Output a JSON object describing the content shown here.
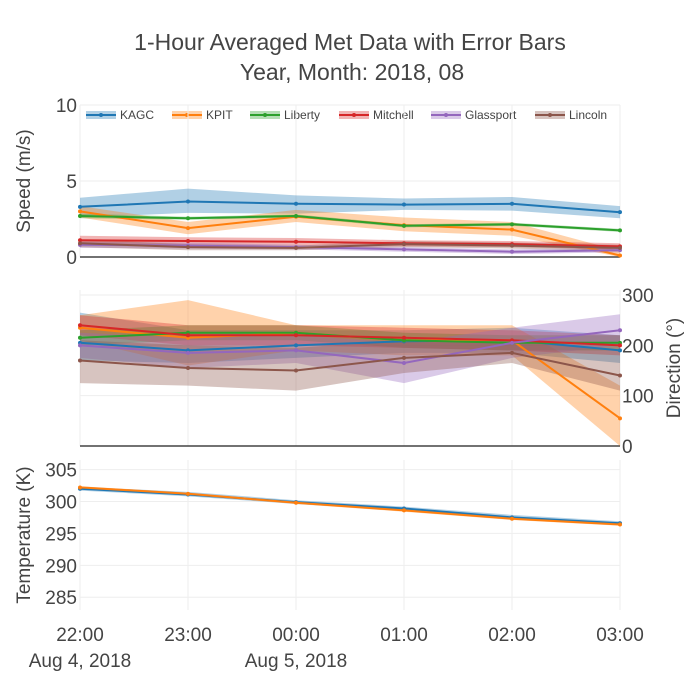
{
  "chart_data": {
    "type": "line",
    "title": "1-Hour Averaged Met Data with Error Bars",
    "subtitle": "Year, Month: 2018, 08",
    "x_ticks": [
      "22:00",
      "23:00",
      "00:00",
      "01:00",
      "02:00",
      "03:00"
    ],
    "x_dates": [
      "Aug 4, 2018",
      "Aug 5, 2018"
    ],
    "x_times": [
      "2018-08-04 22:00",
      "2018-08-04 23:00",
      "2018-08-05 00:00",
      "2018-08-05 01:00",
      "2018-08-05 02:00",
      "2018-08-05 03:00"
    ],
    "legend": {
      "placement": "top",
      "orientation": "horizontal"
    },
    "grid": true,
    "colors": {
      "KAGC": "#1f77b4",
      "KPIT": "#ff7f0e",
      "Liberty": "#2ca02c",
      "Mitchell": "#d62728",
      "Glassport": "#9467bd",
      "Lincoln": "#8c564b"
    },
    "panels": [
      {
        "id": "speed",
        "ylabel": "Speed (m/s)",
        "y_axis_side": "left",
        "ylim": [
          0,
          10
        ],
        "yticks": [
          "0",
          "5",
          "10"
        ],
        "series": [
          {
            "name": "KAGC",
            "values": [
              3.3,
              3.65,
              3.5,
              3.45,
              3.5,
              2.95
            ],
            "lower": [
              2.6,
              2.9,
              2.85,
              3.1,
              3.05,
              2.55
            ],
            "upper": [
              3.9,
              4.5,
              4.05,
              3.85,
              3.95,
              3.35
            ]
          },
          {
            "name": "KPIT",
            "values": [
              3.0,
              1.9,
              2.65,
              2.1,
              1.8,
              0.1
            ],
            "lower": [
              2.6,
              1.5,
              2.3,
              1.7,
              1.4,
              0.0
            ],
            "upper": [
              3.35,
              2.3,
              3.1,
              2.6,
              2.3,
              0.4
            ]
          },
          {
            "name": "Liberty",
            "values": [
              2.7,
              2.55,
              2.7,
              2.05,
              2.15,
              1.75
            ],
            "lower": [
              2.55,
              2.45,
              2.6,
              1.95,
              2.05,
              1.65
            ],
            "upper": [
              2.85,
              2.65,
              2.8,
              2.15,
              2.25,
              1.85
            ]
          },
          {
            "name": "Mitchell",
            "values": [
              1.1,
              1.05,
              1.0,
              0.9,
              0.85,
              0.7
            ],
            "lower": [
              0.8,
              0.8,
              0.75,
              0.7,
              0.65,
              0.5
            ],
            "upper": [
              1.4,
              1.3,
              1.25,
              1.1,
              1.05,
              0.9
            ]
          },
          {
            "name": "Glassport",
            "values": [
              0.8,
              0.75,
              0.65,
              0.5,
              0.35,
              0.45
            ],
            "lower": [
              0.6,
              0.55,
              0.5,
              0.35,
              0.2,
              0.3
            ],
            "upper": [
              1.0,
              0.95,
              0.8,
              0.65,
              0.5,
              0.6
            ]
          },
          {
            "name": "Lincoln",
            "values": [
              0.9,
              0.65,
              0.6,
              0.85,
              0.75,
              0.6
            ],
            "lower": [
              0.65,
              0.45,
              0.45,
              0.65,
              0.55,
              0.4
            ],
            "upper": [
              1.15,
              0.85,
              0.75,
              1.05,
              0.95,
              0.8
            ]
          }
        ]
      },
      {
        "id": "direction",
        "ylabel": "Direction (°)",
        "y_axis_side": "right",
        "ylim": [
          0,
          310
        ],
        "yticks": [
          "0",
          "100",
          "200",
          "300"
        ],
        "series": [
          {
            "name": "KAGC",
            "values": [
              205,
              190,
              200,
              208,
              210,
              190
            ],
            "lower": [
              170,
              165,
              175,
              185,
              185,
              165
            ],
            "upper": [
              265,
              230,
              230,
              230,
              235,
              220
            ]
          },
          {
            "name": "KPIT",
            "values": [
              235,
              215,
              225,
              210,
              210,
              55
            ],
            "lower": [
              210,
              160,
              190,
              180,
              180,
              0
            ],
            "upper": [
              260,
              290,
              240,
              240,
              240,
              120
            ]
          },
          {
            "name": "Liberty",
            "values": [
              215,
              225,
              225,
              210,
              205,
              205
            ],
            "lower": [
              200,
              210,
              210,
              195,
              190,
              190
            ],
            "upper": [
              230,
              240,
              240,
              225,
              220,
              220
            ]
          },
          {
            "name": "Mitchell",
            "values": [
              240,
              220,
              220,
              215,
              210,
              200
            ],
            "lower": [
              220,
              200,
              200,
              195,
              190,
              180
            ],
            "upper": [
              260,
              240,
              240,
              235,
              230,
              220
            ]
          },
          {
            "name": "Glassport",
            "values": [
              200,
              185,
              190,
              165,
              205,
              230
            ],
            "lower": [
              175,
              155,
              165,
              125,
              175,
              200
            ],
            "upper": [
              225,
              215,
              220,
              205,
              235,
              262
            ]
          },
          {
            "name": "Lincoln",
            "values": [
              170,
              155,
              150,
              175,
              185,
              140
            ],
            "lower": [
              125,
              120,
              110,
              145,
              165,
              110
            ],
            "upper": [
              210,
              200,
              195,
              210,
              210,
              190
            ]
          }
        ]
      },
      {
        "id": "temperature",
        "ylabel": "Temperature (K)",
        "y_axis_side": "left",
        "ylim": [
          283,
          306.5
        ],
        "yticks": [
          "285",
          "290",
          "295",
          "300",
          "305"
        ],
        "series": [
          {
            "name": "KAGC",
            "values": [
              302.0,
              301.1,
              299.9,
              298.9,
              297.5,
              296.6
            ],
            "lower": [
              301.7,
              300.8,
              299.6,
              298.6,
              297.2,
              296.3
            ],
            "upper": [
              302.3,
              301.5,
              300.2,
              299.2,
              297.9,
              296.9
            ]
          },
          {
            "name": "KPIT",
            "values": [
              302.2,
              301.2,
              299.8,
              298.6,
              297.3,
              296.4
            ],
            "lower": [
              302.0,
              301.0,
              299.6,
              298.4,
              297.1,
              296.2
            ],
            "upper": [
              302.4,
              301.4,
              300.0,
              298.8,
              297.5,
              296.6
            ]
          }
        ]
      }
    ]
  }
}
